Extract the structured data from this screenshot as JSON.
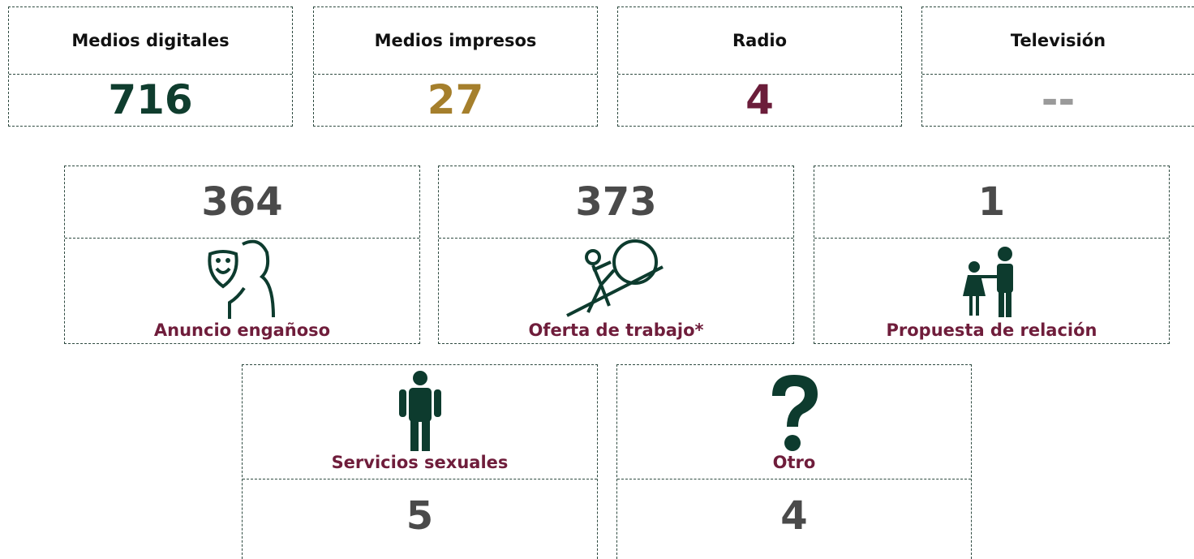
{
  "media": [
    {
      "label": "Medios digitales",
      "value": 716,
      "color": "#0f3d2e"
    },
    {
      "label": "Medios impresos",
      "value": 27,
      "color": "#a57f2c"
    },
    {
      "label": "Radio",
      "value": 4,
      "color": "#6b1d3a"
    },
    {
      "label": "Televisión",
      "value": "--",
      "color": "#9a9a9a"
    }
  ],
  "types": [
    {
      "label": "Anuncio engañoso",
      "value": 364
    },
    {
      "label": "Oferta de trabajo*",
      "value": 373
    },
    {
      "label": "Propuesta de relación",
      "value": 1
    },
    {
      "label": "Servicios sexuales",
      "value": 5
    },
    {
      "label": "Otro",
      "value": 4
    }
  ]
}
